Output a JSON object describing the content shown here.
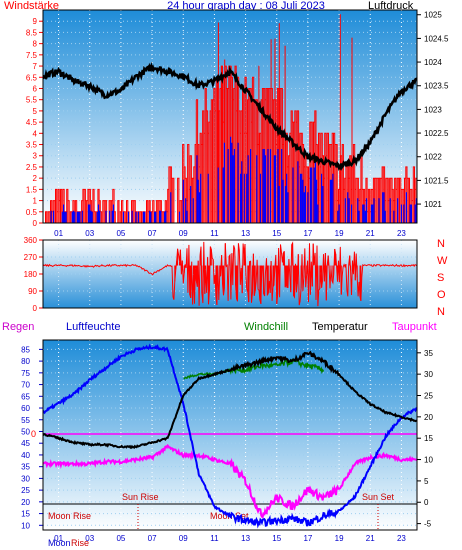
{
  "header": {
    "left": "Windstärke",
    "center": "24 hour graph day : 08 Juli 2023",
    "right": "Luftdruck"
  },
  "top_panel": {
    "left_ticks": [
      "0",
      "0.5",
      "1",
      "1.5",
      "2",
      "2.5",
      "3",
      "3.5",
      "4",
      "4.5",
      "5",
      "5.5",
      "6",
      "6.5",
      "7",
      "7.5",
      "8",
      "8.5",
      "9"
    ],
    "right_ticks": [
      "1021",
      "1021.5",
      "1022",
      "1022.5",
      "1023",
      "1023.5",
      "1024",
      "1024.5",
      "1025"
    ],
    "hour_labels": [
      "01",
      "03",
      "05",
      "07",
      "09",
      "11",
      "13",
      "15",
      "17",
      "19",
      "21",
      "23"
    ]
  },
  "middle_panel": {
    "left_ticks": [
      "0",
      "90",
      "180",
      "270",
      "360"
    ],
    "direction_labels": [
      "N",
      "W",
      "S",
      "O",
      "N"
    ]
  },
  "bottom_panel": {
    "headers": {
      "regen": "Regen",
      "luftfeuchte": "Luftfeuchte",
      "windchill": "Windchill",
      "temperatur": "Temperatur",
      "taupunkt": "Taupunkt"
    },
    "left_ticks": [
      "10",
      "15",
      "20",
      "25",
      "30",
      "35",
      "40",
      "45",
      "50",
      "55",
      "60",
      "65",
      "70",
      "75",
      "80",
      "85"
    ],
    "rain_zero": "0",
    "right_ticks": [
      "-5",
      "0",
      "5",
      "10",
      "15",
      "20",
      "25",
      "30",
      "35"
    ],
    "sun_rise": "Sun Rise",
    "sun_set": "Sun Set",
    "moon_rise": "Moon Rise",
    "moon_set": "Moon Set",
    "hour_labels": [
      "01",
      "03",
      "05",
      "07",
      "09",
      "11",
      "13",
      "15",
      "17",
      "19",
      "21",
      "23"
    ],
    "footer_moon": "Moon",
    "footer_rise": "Rise"
  },
  "colors": {
    "wind_speed": "#ff0000",
    "wind_gust_blue": "#0000ff",
    "pressure": "#000000",
    "humidity": "#0000ff",
    "temperature": "#000000",
    "windchill": "#008000",
    "dewpoint": "#ff00ff",
    "rain_line": "#ff00ff",
    "regen_label": "#cc00cc",
    "luftfeuchte_label": "#0000cc",
    "windchill_label": "#008000",
    "taupunkt_label": "#ff00ff"
  },
  "chart_data": [
    {
      "type": "line",
      "x_hours": [
        0,
        1,
        2,
        3,
        4,
        5,
        6,
        7,
        8,
        9,
        10,
        11,
        12,
        13,
        14,
        15,
        16,
        17,
        18,
        19,
        20,
        21,
        22,
        23,
        24
      ],
      "series": [
        {
          "name": "Luftdruck",
          "values": [
            1023.7,
            1023.8,
            1023.6,
            1023.5,
            1023.3,
            1023.4,
            1023.7,
            1023.9,
            1023.8,
            1023.7,
            1023.5,
            1023.6,
            1023.8,
            1023.4,
            1023.0,
            1022.6,
            1022.3,
            1022.0,
            1021.9,
            1021.8,
            1021.9,
            1022.3,
            1022.9,
            1023.4,
            1023.6
          ]
        },
        {
          "name": "Windstärke",
          "values": [
            0,
            1,
            0.5,
            1,
            0.5,
            1,
            0,
            0.5,
            1,
            2,
            4,
            5,
            6,
            5,
            5,
            4.5,
            4,
            3.5,
            3,
            2.5,
            2,
            2,
            1.5,
            1.5,
            2
          ]
        }
      ],
      "ylim_left": [
        0,
        9.5
      ],
      "ylim_right": [
        1020.6,
        1025.1
      ]
    },
    {
      "type": "line",
      "x_hours": [
        0,
        1,
        2,
        3,
        4,
        5,
        6,
        7,
        8,
        9,
        10,
        11,
        12,
        13,
        14,
        15,
        16,
        17,
        18,
        19,
        20,
        21,
        22,
        23,
        24
      ],
      "series": [
        {
          "name": "Windrichtung",
          "values": [
            225,
            225,
            225,
            220,
            225,
            225,
            225,
            180,
            225,
            200,
            230,
            180,
            250,
            180,
            200,
            250,
            180,
            220,
            200,
            230,
            225,
            225,
            225,
            225,
            225
          ]
        }
      ],
      "ylim": [
        0,
        360
      ]
    },
    {
      "type": "line",
      "x_hours": [
        0,
        1,
        2,
        3,
        4,
        5,
        6,
        7,
        8,
        9,
        10,
        11,
        12,
        13,
        14,
        15,
        16,
        17,
        18,
        19,
        20,
        21,
        22,
        23,
        24
      ],
      "series": [
        {
          "name": "Luftfeuchte",
          "values": [
            58,
            62,
            66,
            72,
            77,
            82,
            85,
            86,
            85,
            62,
            32,
            18,
            14,
            12,
            11,
            12,
            13,
            11,
            14,
            16,
            22,
            35,
            48,
            56,
            60
          ]
        },
        {
          "name": "Temperatur",
          "values": [
            16,
            15,
            14,
            13.5,
            13.5,
            13,
            13,
            14,
            15,
            25,
            29,
            30,
            31,
            32,
            33,
            34,
            33,
            35,
            33,
            30,
            26,
            23,
            21,
            20,
            19
          ]
        },
        {
          "name": "Windchill",
          "values": [
            null,
            null,
            null,
            null,
            null,
            null,
            null,
            null,
            null,
            29,
            30,
            30,
            31,
            31,
            32,
            32,
            33,
            32,
            31,
            null,
            null,
            null,
            null,
            null,
            null
          ]
        },
        {
          "name": "Taupunkt",
          "values": [
            9,
            9,
            9,
            9,
            9.5,
            9.5,
            10,
            10.5,
            13,
            11,
            11,
            10,
            9,
            5,
            -3,
            1,
            -1,
            3,
            1,
            3,
            9,
            10.5,
            11,
            10,
            10
          ]
        }
      ],
      "ylim_left": [
        8,
        89
      ],
      "ylim_right": [
        -6.5,
        38
      ]
    }
  ]
}
